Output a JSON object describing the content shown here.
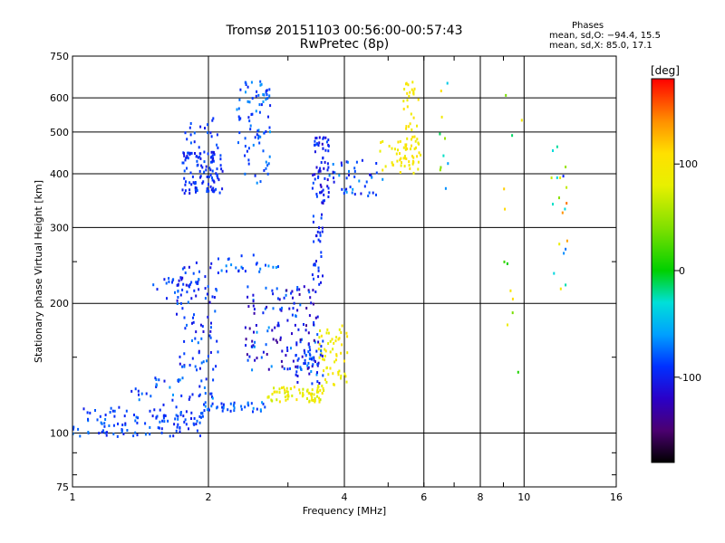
{
  "figure": {
    "title": "Tromsø 20151103 00:56:00-00:57:43",
    "subtitle": "RwPretec (8p)",
    "stats": {
      "heading": "Phases",
      "o_mode": "mean, sd,O: −94.4, 15.5",
      "x_mode": "mean, sd,X:  85.0, 17.1"
    }
  },
  "chart_data": {
    "type": "scatter",
    "xlabel": "Frequency [MHz]",
    "ylabel": "Stationary phase Virtual Height [km]",
    "xscale": "log",
    "yscale": "log",
    "xlim": [
      1,
      16
    ],
    "ylim": [
      75,
      750
    ],
    "x_ticks": [
      1,
      2,
      4,
      6,
      8,
      10,
      16
    ],
    "y_ticks": [
      75,
      100,
      200,
      300,
      400,
      500,
      600,
      750
    ],
    "grid": true,
    "colorbar": {
      "label": "[deg]",
      "range": [
        -180,
        180
      ],
      "ticks": [
        100,
        0,
        -100
      ],
      "colormap": [
        [
          -180,
          "#000000"
        ],
        [
          -150,
          "#4b0070"
        ],
        [
          -120,
          "#2a00c8"
        ],
        [
          -90,
          "#0030ff"
        ],
        [
          -60,
          "#00a0ff"
        ],
        [
          -30,
          "#00e0d8"
        ],
        [
          0,
          "#00d000"
        ],
        [
          40,
          "#80e000"
        ],
        [
          80,
          "#e8f000"
        ],
        [
          110,
          "#ffe000"
        ],
        [
          140,
          "#ff9000"
        ],
        [
          180,
          "#ff0000"
        ]
      ]
    },
    "series": [
      {
        "x_range": [
          1.0,
          1.95
        ],
        "y_range": [
          98,
          115
        ],
        "phase": [
          -105,
          -70
        ],
        "count": 120
      },
      {
        "x_range": [
          1.95,
          2.7
        ],
        "y_range": [
          112,
          118
        ],
        "phase": [
          -100,
          -60
        ],
        "count": 40
      },
      {
        "x_range": [
          2.7,
          3.6
        ],
        "y_range": [
          118,
          128
        ],
        "phase": [
          60,
          110
        ],
        "count": 70
      },
      {
        "x_range": [
          3.5,
          4.1
        ],
        "y_range": [
          128,
          180
        ],
        "phase": [
          75,
          110
        ],
        "count": 60
      },
      {
        "x_range": [
          3.1,
          3.6
        ],
        "y_range": [
          130,
          165
        ],
        "phase": [
          -120,
          -60
        ],
        "count": 50
      },
      {
        "x_range": [
          1.35,
          2.1
        ],
        "y_range": [
          115,
          135
        ],
        "phase": [
          -105,
          -60
        ],
        "count": 40
      },
      {
        "x_range": [
          1.7,
          2.1
        ],
        "y_range": [
          140,
          250
        ],
        "phase": [
          -115,
          -70
        ],
        "count": 80
      },
      {
        "x_range": [
          1.5,
          2.0
        ],
        "y_range": [
          205,
          230
        ],
        "phase": [
          -110,
          -70
        ],
        "count": 30
      },
      {
        "x_range": [
          2.1,
          2.9
        ],
        "y_range": [
          235,
          260
        ],
        "phase": [
          -100,
          -60
        ],
        "count": 25
      },
      {
        "x_range": [
          2.4,
          3.5
        ],
        "y_range": [
          140,
          220
        ],
        "phase": [
          -140,
          -60
        ],
        "count": 130
      },
      {
        "x_range": [
          3.4,
          3.6
        ],
        "y_range": [
          220,
          340
        ],
        "phase": [
          -110,
          -80
        ],
        "count": 30
      },
      {
        "x_range": [
          1.75,
          2.15
        ],
        "y_range": [
          360,
          450
        ],
        "phase": [
          -110,
          -80
        ],
        "count": 110
      },
      {
        "x_range": [
          1.75,
          2.1
        ],
        "y_range": [
          450,
          540
        ],
        "phase": [
          -105,
          -75
        ],
        "count": 20
      },
      {
        "x_range": [
          2.3,
          2.75
        ],
        "y_range": [
          380,
          660
        ],
        "phase": [
          -100,
          -60
        ],
        "count": 80
      },
      {
        "x_range": [
          3.4,
          3.7
        ],
        "y_range": [
          340,
          490
        ],
        "phase": [
          -120,
          -80
        ],
        "count": 60
      },
      {
        "x_range": [
          3.6,
          4.9
        ],
        "y_range": [
          355,
          430
        ],
        "phase": [
          -110,
          -60
        ],
        "count": 45
      },
      {
        "x_range": [
          4.8,
          5.5
        ],
        "y_range": [
          400,
          480
        ],
        "phase": [
          80,
          110
        ],
        "count": 25
      },
      {
        "x_range": [
          5.4,
          5.9
        ],
        "y_range": [
          400,
          660
        ],
        "phase": [
          85,
          110
        ],
        "count": 60
      },
      {
        "x_range": [
          6.5,
          6.8
        ],
        "y_range": [
          320,
          650
        ],
        "phase": [
          -80,
          130
        ],
        "count": 10
      },
      {
        "x_range": [
          9.0,
          10.0
        ],
        "y_range": [
          120,
          670
        ],
        "phase": [
          -60,
          130
        ],
        "count": 12
      },
      {
        "x_range": [
          11.5,
          12.5
        ],
        "y_range": [
          210,
          530
        ],
        "phase": [
          -110,
          150
        ],
        "count": 20
      }
    ]
  }
}
